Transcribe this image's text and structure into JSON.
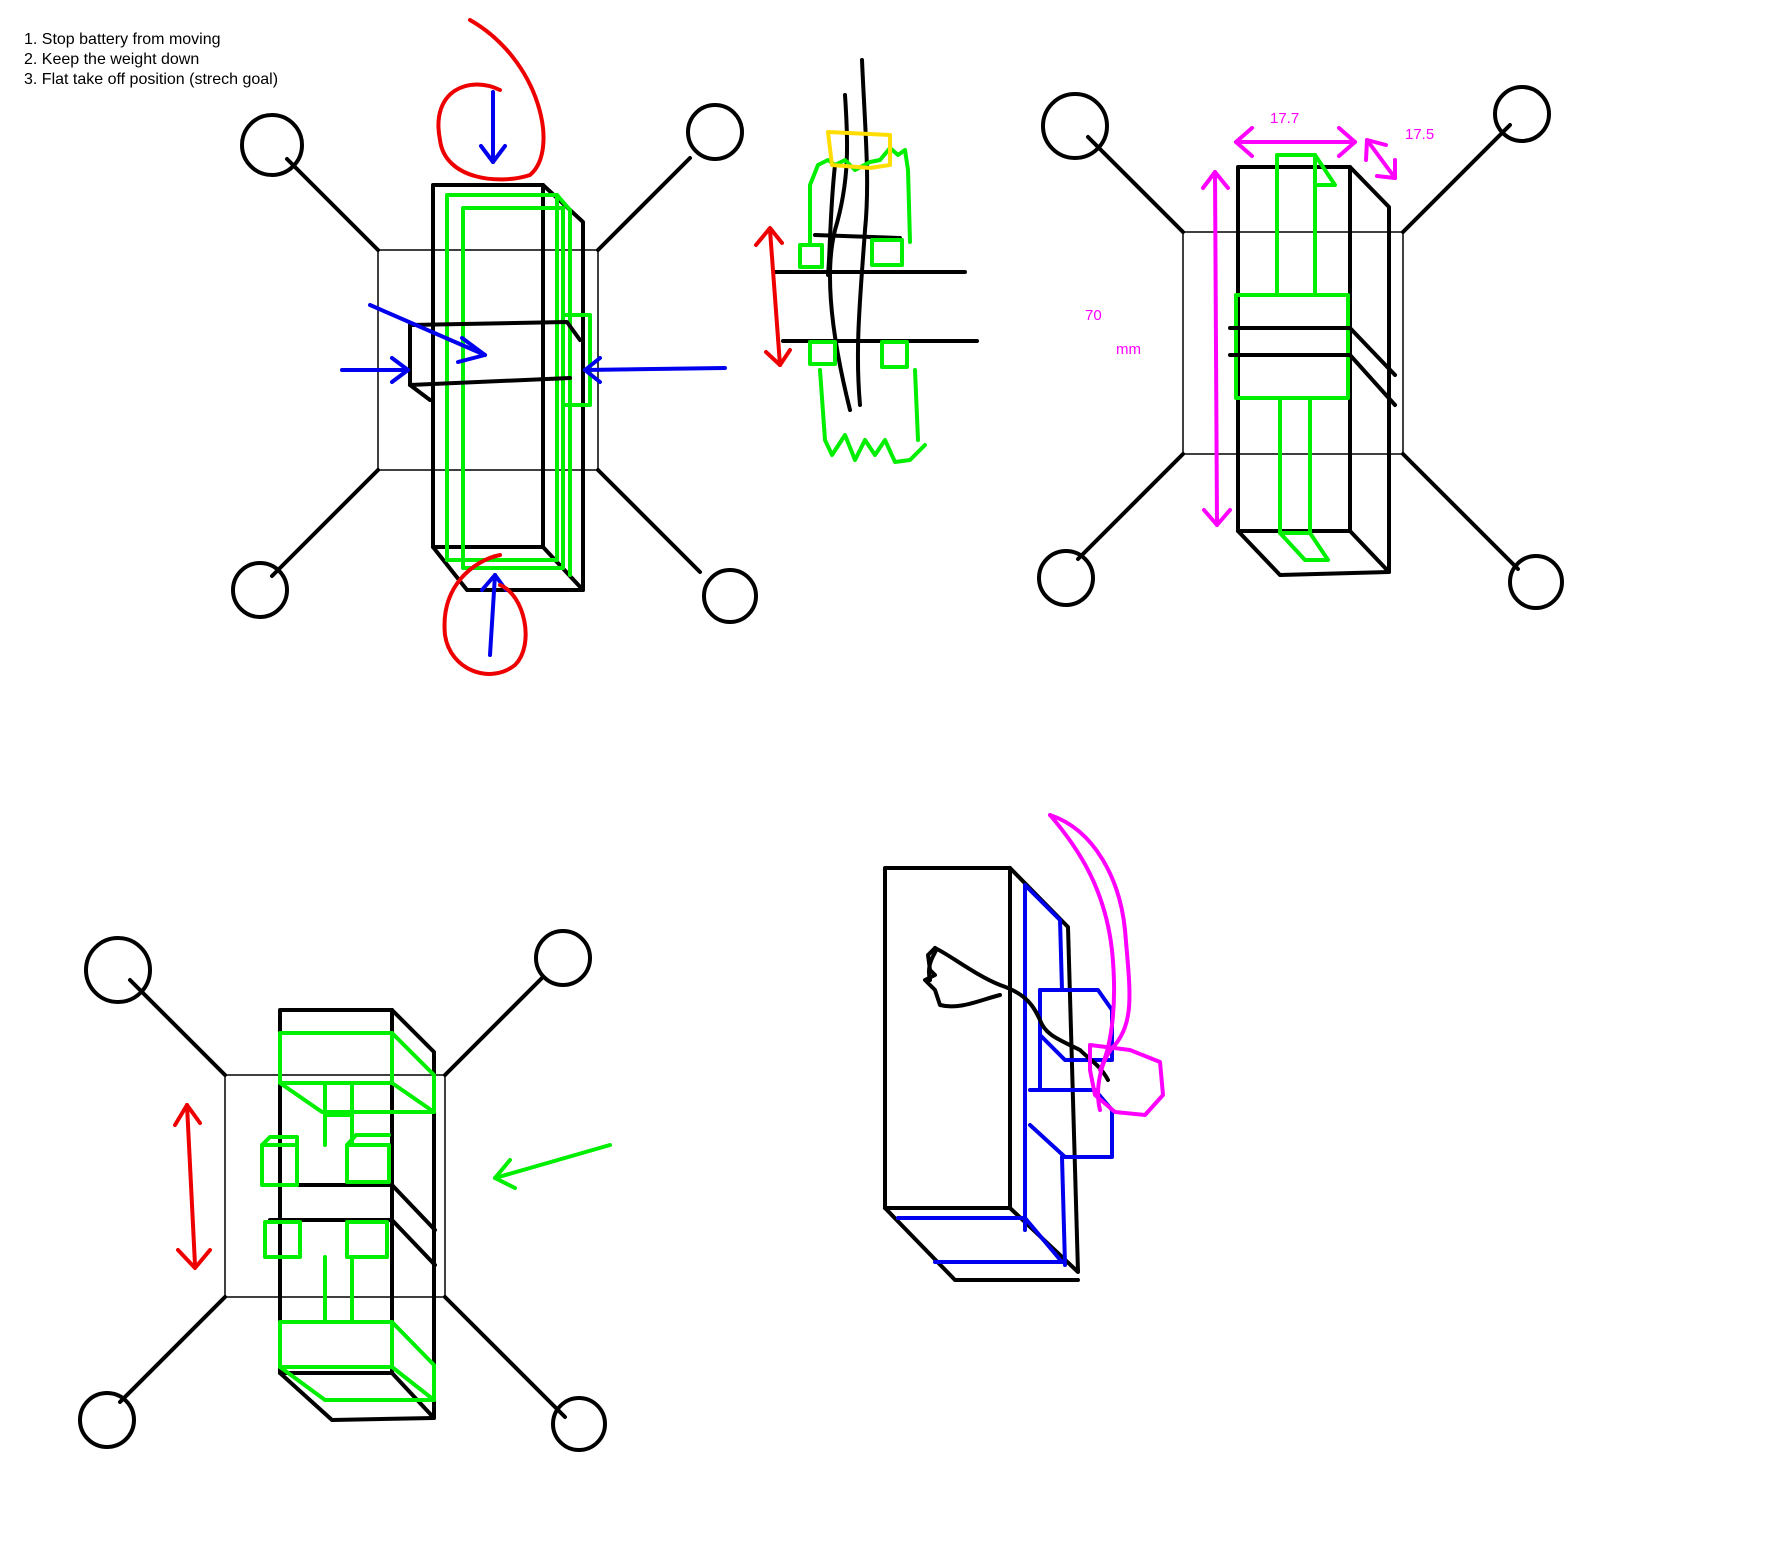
{
  "notes": {
    "line1": "1. Stop battery from moving",
    "line2": "2. Keep the weight down",
    "line3": "3. Flat take off position (strech goal)"
  },
  "dimensions": {
    "width_label": "17.7",
    "depth_label": "17.5",
    "height_label": "70",
    "unit_label": "mm"
  },
  "colors": {
    "outline": "#000000",
    "holder": "#00ee00",
    "force_arrows": "#0000ee",
    "callout": "#ee0000",
    "dimension": "#ff00ff",
    "strap": "#ffdd00"
  }
}
